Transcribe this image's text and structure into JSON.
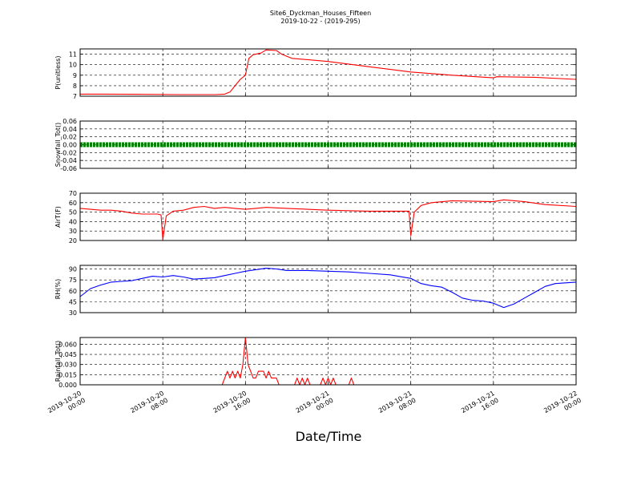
{
  "figure": {
    "title_line1": "Site6_Dyckman_Houses_Fifteen",
    "title_line2": "2019-10-22 - (2019-295)",
    "xlabel": "Date/Time",
    "x_ticks": [
      {
        "line1": "2019-10-20",
        "line2": "00:00"
      },
      {
        "line1": "2019-10-20",
        "line2": "08:00"
      },
      {
        "line1": "2019-10-20",
        "line2": "16:00"
      },
      {
        "line1": "2019-10-21",
        "line2": "00:00"
      },
      {
        "line1": "2019-10-21",
        "line2": "08:00"
      },
      {
        "line1": "2019-10-21",
        "line2": "16:00"
      },
      {
        "line1": "2019-10-22",
        "line2": "00:00"
      }
    ]
  },
  "chart_data": [
    {
      "type": "line",
      "ylabel": "P(unitless)",
      "color": "#ff0000",
      "x_range": [
        "2019-10-20 00:00",
        "2019-10-22 00:00"
      ],
      "ylim": [
        7,
        11.5
      ],
      "yticks": [
        "7",
        "8",
        "9",
        "10",
        "11"
      ],
      "ytick_values": [
        7,
        8,
        9,
        10,
        11
      ],
      "grid": true,
      "points": [
        [
          "2019-10-20 00:00",
          7.2
        ],
        [
          "2019-10-20 05:00",
          7.18
        ],
        [
          "2019-10-20 10:00",
          7.15
        ],
        [
          "2019-10-20 13:00",
          7.15
        ],
        [
          "2019-10-20 14:00",
          7.2
        ],
        [
          "2019-10-20 14:30",
          7.4
        ],
        [
          "2019-10-20 15:00",
          8.0
        ],
        [
          "2019-10-20 15:30",
          8.6
        ],
        [
          "2019-10-20 16:00",
          9.0
        ],
        [
          "2019-10-20 16:20",
          10.6
        ],
        [
          "2019-10-20 16:45",
          10.95
        ],
        [
          "2019-10-20 17:30",
          11.1
        ],
        [
          "2019-10-20 18:00",
          11.4
        ],
        [
          "2019-10-20 19:00",
          11.35
        ],
        [
          "2019-10-20 19:30",
          11.0
        ],
        [
          "2019-10-20 20:30",
          10.6
        ],
        [
          "2019-10-21 00:00",
          10.3
        ],
        [
          "2019-10-21 04:00",
          9.8
        ],
        [
          "2019-10-21 08:00",
          9.3
        ],
        [
          "2019-10-21 12:00",
          9.0
        ],
        [
          "2019-10-21 16:00",
          8.75
        ],
        [
          "2019-10-21 16:20",
          8.85
        ],
        [
          "2019-10-21 20:00",
          8.8
        ],
        [
          "2019-10-22 00:00",
          8.6
        ]
      ]
    },
    {
      "type": "line",
      "ylabel": "Snowfall_Tot()",
      "color": "#008000",
      "x_range": [
        "2019-10-20 00:00",
        "2019-10-22 00:00"
      ],
      "ylim": [
        -0.06,
        0.06
      ],
      "yticks": [
        "-0.06",
        "-0.04",
        "-0.02",
        "0.00",
        "0.02",
        "0.04",
        "0.06"
      ],
      "ytick_values": [
        -0.06,
        -0.04,
        -0.02,
        0.0,
        0.02,
        0.04,
        0.06
      ],
      "grid": true,
      "markers": true,
      "points": [
        [
          "2019-10-20 00:00",
          0.0
        ],
        [
          "2019-10-22 00:00",
          0.0
        ]
      ]
    },
    {
      "type": "line",
      "ylabel": "AirT(F)",
      "color": "#ff0000",
      "x_range": [
        "2019-10-20 00:00",
        "2019-10-22 00:00"
      ],
      "ylim": [
        20,
        70
      ],
      "yticks": [
        "20",
        "30",
        "40",
        "50",
        "60",
        "70"
      ],
      "ytick_values": [
        20,
        30,
        40,
        50,
        60,
        70
      ],
      "grid": true,
      "points": [
        [
          "2019-10-20 00:00",
          54
        ],
        [
          "2019-10-20 01:00",
          53
        ],
        [
          "2019-10-20 02:00",
          52
        ],
        [
          "2019-10-20 03:00",
          52
        ],
        [
          "2019-10-20 04:00",
          51
        ],
        [
          "2019-10-20 05:00",
          49
        ],
        [
          "2019-10-20 06:00",
          48
        ],
        [
          "2019-10-20 07:30",
          48
        ],
        [
          "2019-10-20 07:50",
          47
        ],
        [
          "2019-10-20 08:00",
          21
        ],
        [
          "2019-10-20 08:20",
          46
        ],
        [
          "2019-10-20 09:00",
          51
        ],
        [
          "2019-10-20 10:00",
          52
        ],
        [
          "2019-10-20 11:00",
          55
        ],
        [
          "2019-10-20 12:00",
          56
        ],
        [
          "2019-10-20 13:00",
          54
        ],
        [
          "2019-10-20 14:00",
          55
        ],
        [
          "2019-10-20 15:00",
          54
        ],
        [
          "2019-10-20 16:00",
          53
        ],
        [
          "2019-10-20 17:00",
          54
        ],
        [
          "2019-10-20 18:00",
          55
        ],
        [
          "2019-10-20 20:00",
          54
        ],
        [
          "2019-10-21 00:00",
          52
        ],
        [
          "2019-10-21 04:00",
          51
        ],
        [
          "2019-10-21 07:50",
          51
        ],
        [
          "2019-10-21 08:00",
          25
        ],
        [
          "2019-10-21 08:20",
          50
        ],
        [
          "2019-10-21 09:00",
          57
        ],
        [
          "2019-10-21 10:00",
          60
        ],
        [
          "2019-10-21 12:00",
          62
        ],
        [
          "2019-10-21 16:00",
          61
        ],
        [
          "2019-10-21 17:00",
          63
        ],
        [
          "2019-10-21 19:00",
          61
        ],
        [
          "2019-10-21 21:00",
          58
        ],
        [
          "2019-10-22 00:00",
          56
        ]
      ]
    },
    {
      "type": "line",
      "ylabel": "RH(%)",
      "color": "#0000ff",
      "x_range": [
        "2019-10-20 00:00",
        "2019-10-22 00:00"
      ],
      "ylim": [
        30,
        95
      ],
      "yticks": [
        "30",
        "45",
        "60",
        "75",
        "90"
      ],
      "ytick_values": [
        30,
        45,
        60,
        75,
        90
      ],
      "grid": true,
      "points": [
        [
          "2019-10-20 00:00",
          52
        ],
        [
          "2019-10-20 01:00",
          63
        ],
        [
          "2019-10-20 02:00",
          68
        ],
        [
          "2019-10-20 03:00",
          72
        ],
        [
          "2019-10-20 04:00",
          73
        ],
        [
          "2019-10-20 05:00",
          74
        ],
        [
          "2019-10-20 06:00",
          77
        ],
        [
          "2019-10-20 07:00",
          80
        ],
        [
          "2019-10-20 08:00",
          79
        ],
        [
          "2019-10-20 09:00",
          81
        ],
        [
          "2019-10-20 10:00",
          79
        ],
        [
          "2019-10-20 11:00",
          76
        ],
        [
          "2019-10-20 12:00",
          77
        ],
        [
          "2019-10-20 13:00",
          78
        ],
        [
          "2019-10-20 14:00",
          81
        ],
        [
          "2019-10-20 15:00",
          84
        ],
        [
          "2019-10-20 16:00",
          87
        ],
        [
          "2019-10-20 17:00",
          89
        ],
        [
          "2019-10-20 18:00",
          91
        ],
        [
          "2019-10-20 19:00",
          90
        ],
        [
          "2019-10-20 20:00",
          88
        ],
        [
          "2019-10-20 22:00",
          88
        ],
        [
          "2019-10-21 00:00",
          87
        ],
        [
          "2019-10-21 02:00",
          86
        ],
        [
          "2019-10-21 04:00",
          84
        ],
        [
          "2019-10-21 06:00",
          82
        ],
        [
          "2019-10-21 08:00",
          77
        ],
        [
          "2019-10-21 09:00",
          70
        ],
        [
          "2019-10-21 10:00",
          67
        ],
        [
          "2019-10-21 11:00",
          65
        ],
        [
          "2019-10-21 12:00",
          58
        ],
        [
          "2019-10-21 13:00",
          50
        ],
        [
          "2019-10-21 14:00",
          47
        ],
        [
          "2019-10-21 15:00",
          46
        ],
        [
          "2019-10-21 16:00",
          43
        ],
        [
          "2019-10-21 17:00",
          37
        ],
        [
          "2019-10-21 18:00",
          42
        ],
        [
          "2019-10-21 19:00",
          50
        ],
        [
          "2019-10-21 20:00",
          58
        ],
        [
          "2019-10-21 21:00",
          66
        ],
        [
          "2019-10-21 22:00",
          70
        ],
        [
          "2019-10-22 00:00",
          72
        ]
      ]
    },
    {
      "type": "line",
      "ylabel": "Rainfall_Tot()",
      "color": "#ff0000",
      "x_range": [
        "2019-10-20 00:00",
        "2019-10-22 00:00"
      ],
      "ylim": [
        0,
        0.07
      ],
      "yticks": [
        "0.000",
        "0.015",
        "0.030",
        "0.045",
        "0.060"
      ],
      "ytick_values": [
        0,
        0.015,
        0.03,
        0.045,
        0.06
      ],
      "grid": true,
      "points": [
        [
          "2019-10-20 00:00",
          0
        ],
        [
          "2019-10-20 13:45",
          0
        ],
        [
          "2019-10-20 14:00",
          0.01
        ],
        [
          "2019-10-20 14:15",
          0.02
        ],
        [
          "2019-10-20 14:30",
          0.01
        ],
        [
          "2019-10-20 14:45",
          0.02
        ],
        [
          "2019-10-20 15:00",
          0.01
        ],
        [
          "2019-10-20 15:15",
          0.02
        ],
        [
          "2019-10-20 15:30",
          0.01
        ],
        [
          "2019-10-20 15:45",
          0.03
        ],
        [
          "2019-10-20 16:00",
          0.07
        ],
        [
          "2019-10-20 16:15",
          0.03
        ],
        [
          "2019-10-20 16:45",
          0.01
        ],
        [
          "2019-10-20 17:00",
          0.01
        ],
        [
          "2019-10-20 17:15",
          0.02
        ],
        [
          "2019-10-20 17:45",
          0.02
        ],
        [
          "2019-10-20 18:00",
          0.01
        ],
        [
          "2019-10-20 18:15",
          0.02
        ],
        [
          "2019-10-20 18:30",
          0.01
        ],
        [
          "2019-10-20 19:00",
          0.01
        ],
        [
          "2019-10-20 19:15",
          0
        ],
        [
          "2019-10-20 20:45",
          0
        ],
        [
          "2019-10-20 21:00",
          0.01
        ],
        [
          "2019-10-20 21:15",
          0
        ],
        [
          "2019-10-20 21:30",
          0.01
        ],
        [
          "2019-10-20 21:45",
          0
        ],
        [
          "2019-10-20 22:00",
          0.01
        ],
        [
          "2019-10-20 22:15",
          0
        ],
        [
          "2019-10-20 23:15",
          0
        ],
        [
          "2019-10-20 23:30",
          0.01
        ],
        [
          "2019-10-20 23:45",
          0
        ],
        [
          "2019-10-21 00:00",
          0.01
        ],
        [
          "2019-10-21 00:15",
          0
        ],
        [
          "2019-10-21 00:30",
          0.01
        ],
        [
          "2019-10-21 00:45",
          0
        ],
        [
          "2019-10-21 02:00",
          0
        ],
        [
          "2019-10-21 02:15",
          0.01
        ],
        [
          "2019-10-21 02:30",
          0
        ],
        [
          "2019-10-22 00:00",
          0
        ]
      ]
    }
  ]
}
